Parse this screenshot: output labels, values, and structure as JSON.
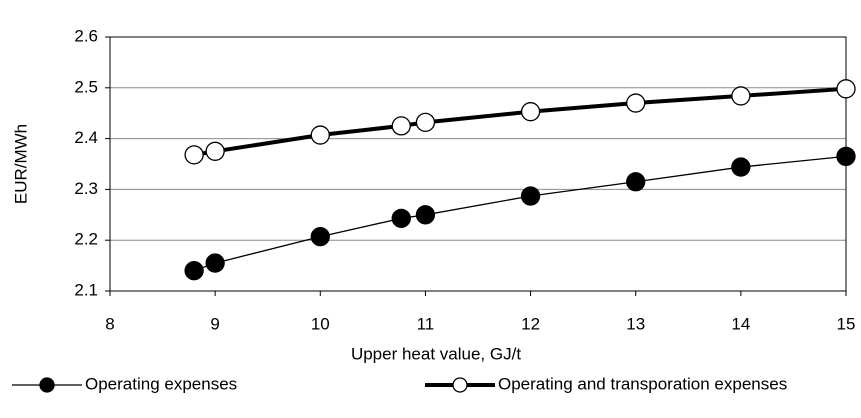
{
  "chart_data": {
    "type": "line",
    "x_label": "Upper heat value, GJ/t",
    "y_label": "EUR/MWh",
    "x": [
      8.8,
      9,
      10,
      10.77,
      11,
      12,
      13,
      14,
      15
    ],
    "series": [
      {
        "name": "Operating expenses",
        "color": "#000000",
        "marker": "filled",
        "line_width": 1.3,
        "values": [
          2.14,
          2.155,
          2.207,
          2.243,
          2.25,
          2.287,
          2.315,
          2.344,
          2.365
        ]
      },
      {
        "name": "Operating and transporation expenses",
        "color": "#000000",
        "marker": "open",
        "line_width": 4,
        "values": [
          2.368,
          2.375,
          2.407,
          2.425,
          2.432,
          2.453,
          2.47,
          2.484,
          2.498
        ]
      }
    ],
    "xlim": [
      8,
      15
    ],
    "xticks": [
      8,
      9,
      10,
      11,
      12,
      13,
      14,
      15
    ],
    "ylim": [
      2.1,
      2.6
    ],
    "yticks": [
      2.1,
      2.2,
      2.3,
      2.4,
      2.5,
      2.6
    ],
    "grid": true,
    "legend": "bottom"
  }
}
